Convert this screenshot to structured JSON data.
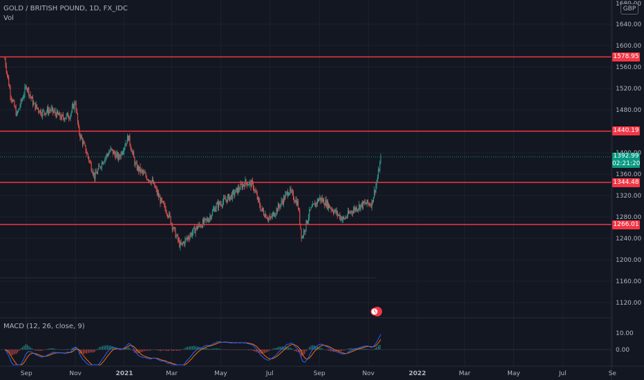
{
  "symbol": {
    "title": "GOLD / BRITISH POUND, 1D, FX_IDC",
    "volume_label": "Vol"
  },
  "price_axis": {
    "currency_button": "GBP",
    "top_partial": "1680.00",
    "ticks": [
      "1640.00",
      "1600.00",
      "1560.00",
      "1520.00",
      "1480.00",
      "1400.00",
      "1360.00",
      "1320.00",
      "1280.00",
      "1240.00",
      "1200.00",
      "1160.00",
      "1120.00"
    ]
  },
  "levels": [
    {
      "label": "1578.95",
      "value": 1578.95
    },
    {
      "label": "1440.19",
      "value": 1440.19
    },
    {
      "label": "1344.48",
      "value": 1344.48
    },
    {
      "label": "1266.01",
      "value": 1266.01
    }
  ],
  "last_price": {
    "price": "1392.99",
    "countdown": "02:21:20"
  },
  "macd": {
    "title": "MACD (12, 26, close, 9)",
    "ticks": [
      "10.00",
      "0.00"
    ]
  },
  "time_axis": [
    "Sep",
    "Nov",
    "2021",
    "Mar",
    "May",
    "Jul",
    "Sep",
    "Nov",
    "2022",
    "Mar",
    "May",
    "Jul",
    "Se"
  ],
  "colors": {
    "background": "#131722",
    "up": "#26a69a",
    "down": "#ef5350",
    "level_line": "#f23645",
    "macd_line": "#2962ff",
    "signal_line": "#ff6d00"
  },
  "chart_data": {
    "type": "candlestick",
    "title": "GOLD / BRITISH POUND, 1D, FX_IDC",
    "ylim": [
      1100,
      1680
    ],
    "close_path": [
      [
        "2020-08-05",
        1575
      ],
      [
        "2020-08-12",
        1510
      ],
      [
        "2020-08-20",
        1470
      ],
      [
        "2020-09-01",
        1525
      ],
      [
        "2020-09-10",
        1490
      ],
      [
        "2020-09-20",
        1475
      ],
      [
        "2020-10-01",
        1480
      ],
      [
        "2020-10-15",
        1465
      ],
      [
        "2020-10-25",
        1470
      ],
      [
        "2020-11-01",
        1495
      ],
      [
        "2020-11-05",
        1440
      ],
      [
        "2020-11-15",
        1400
      ],
      [
        "2020-11-25",
        1355
      ],
      [
        "2020-12-05",
        1385
      ],
      [
        "2020-12-15",
        1405
      ],
      [
        "2020-12-25",
        1390
      ],
      [
        "2021-01-06",
        1430
      ],
      [
        "2021-01-15",
        1375
      ],
      [
        "2021-01-25",
        1360
      ],
      [
        "2021-02-05",
        1345
      ],
      [
        "2021-02-15",
        1310
      ],
      [
        "2021-02-25",
        1285
      ],
      [
        "2021-03-05",
        1250
      ],
      [
        "2021-03-12",
        1225
      ],
      [
        "2021-03-20",
        1240
      ],
      [
        "2021-04-01",
        1260
      ],
      [
        "2021-04-15",
        1275
      ],
      [
        "2021-04-25",
        1300
      ],
      [
        "2021-05-05",
        1310
      ],
      [
        "2021-05-15",
        1320
      ],
      [
        "2021-05-25",
        1335
      ],
      [
        "2021-06-01",
        1345
      ],
      [
        "2021-06-10",
        1340
      ],
      [
        "2021-06-20",
        1295
      ],
      [
        "2021-07-01",
        1275
      ],
      [
        "2021-07-15",
        1305
      ],
      [
        "2021-07-25",
        1330
      ],
      [
        "2021-08-05",
        1305
      ],
      [
        "2021-08-10",
        1240
      ],
      [
        "2021-08-20",
        1290
      ],
      [
        "2021-09-01",
        1315
      ],
      [
        "2021-09-10",
        1305
      ],
      [
        "2021-09-20",
        1290
      ],
      [
        "2021-10-01",
        1275
      ],
      [
        "2021-10-10",
        1290
      ],
      [
        "2021-10-20",
        1300
      ],
      [
        "2021-10-28",
        1305
      ],
      [
        "2021-11-05",
        1305
      ],
      [
        "2021-11-12",
        1350
      ],
      [
        "2021-11-17",
        1392.99
      ]
    ],
    "macd_range": [
      -8,
      20
    ]
  }
}
